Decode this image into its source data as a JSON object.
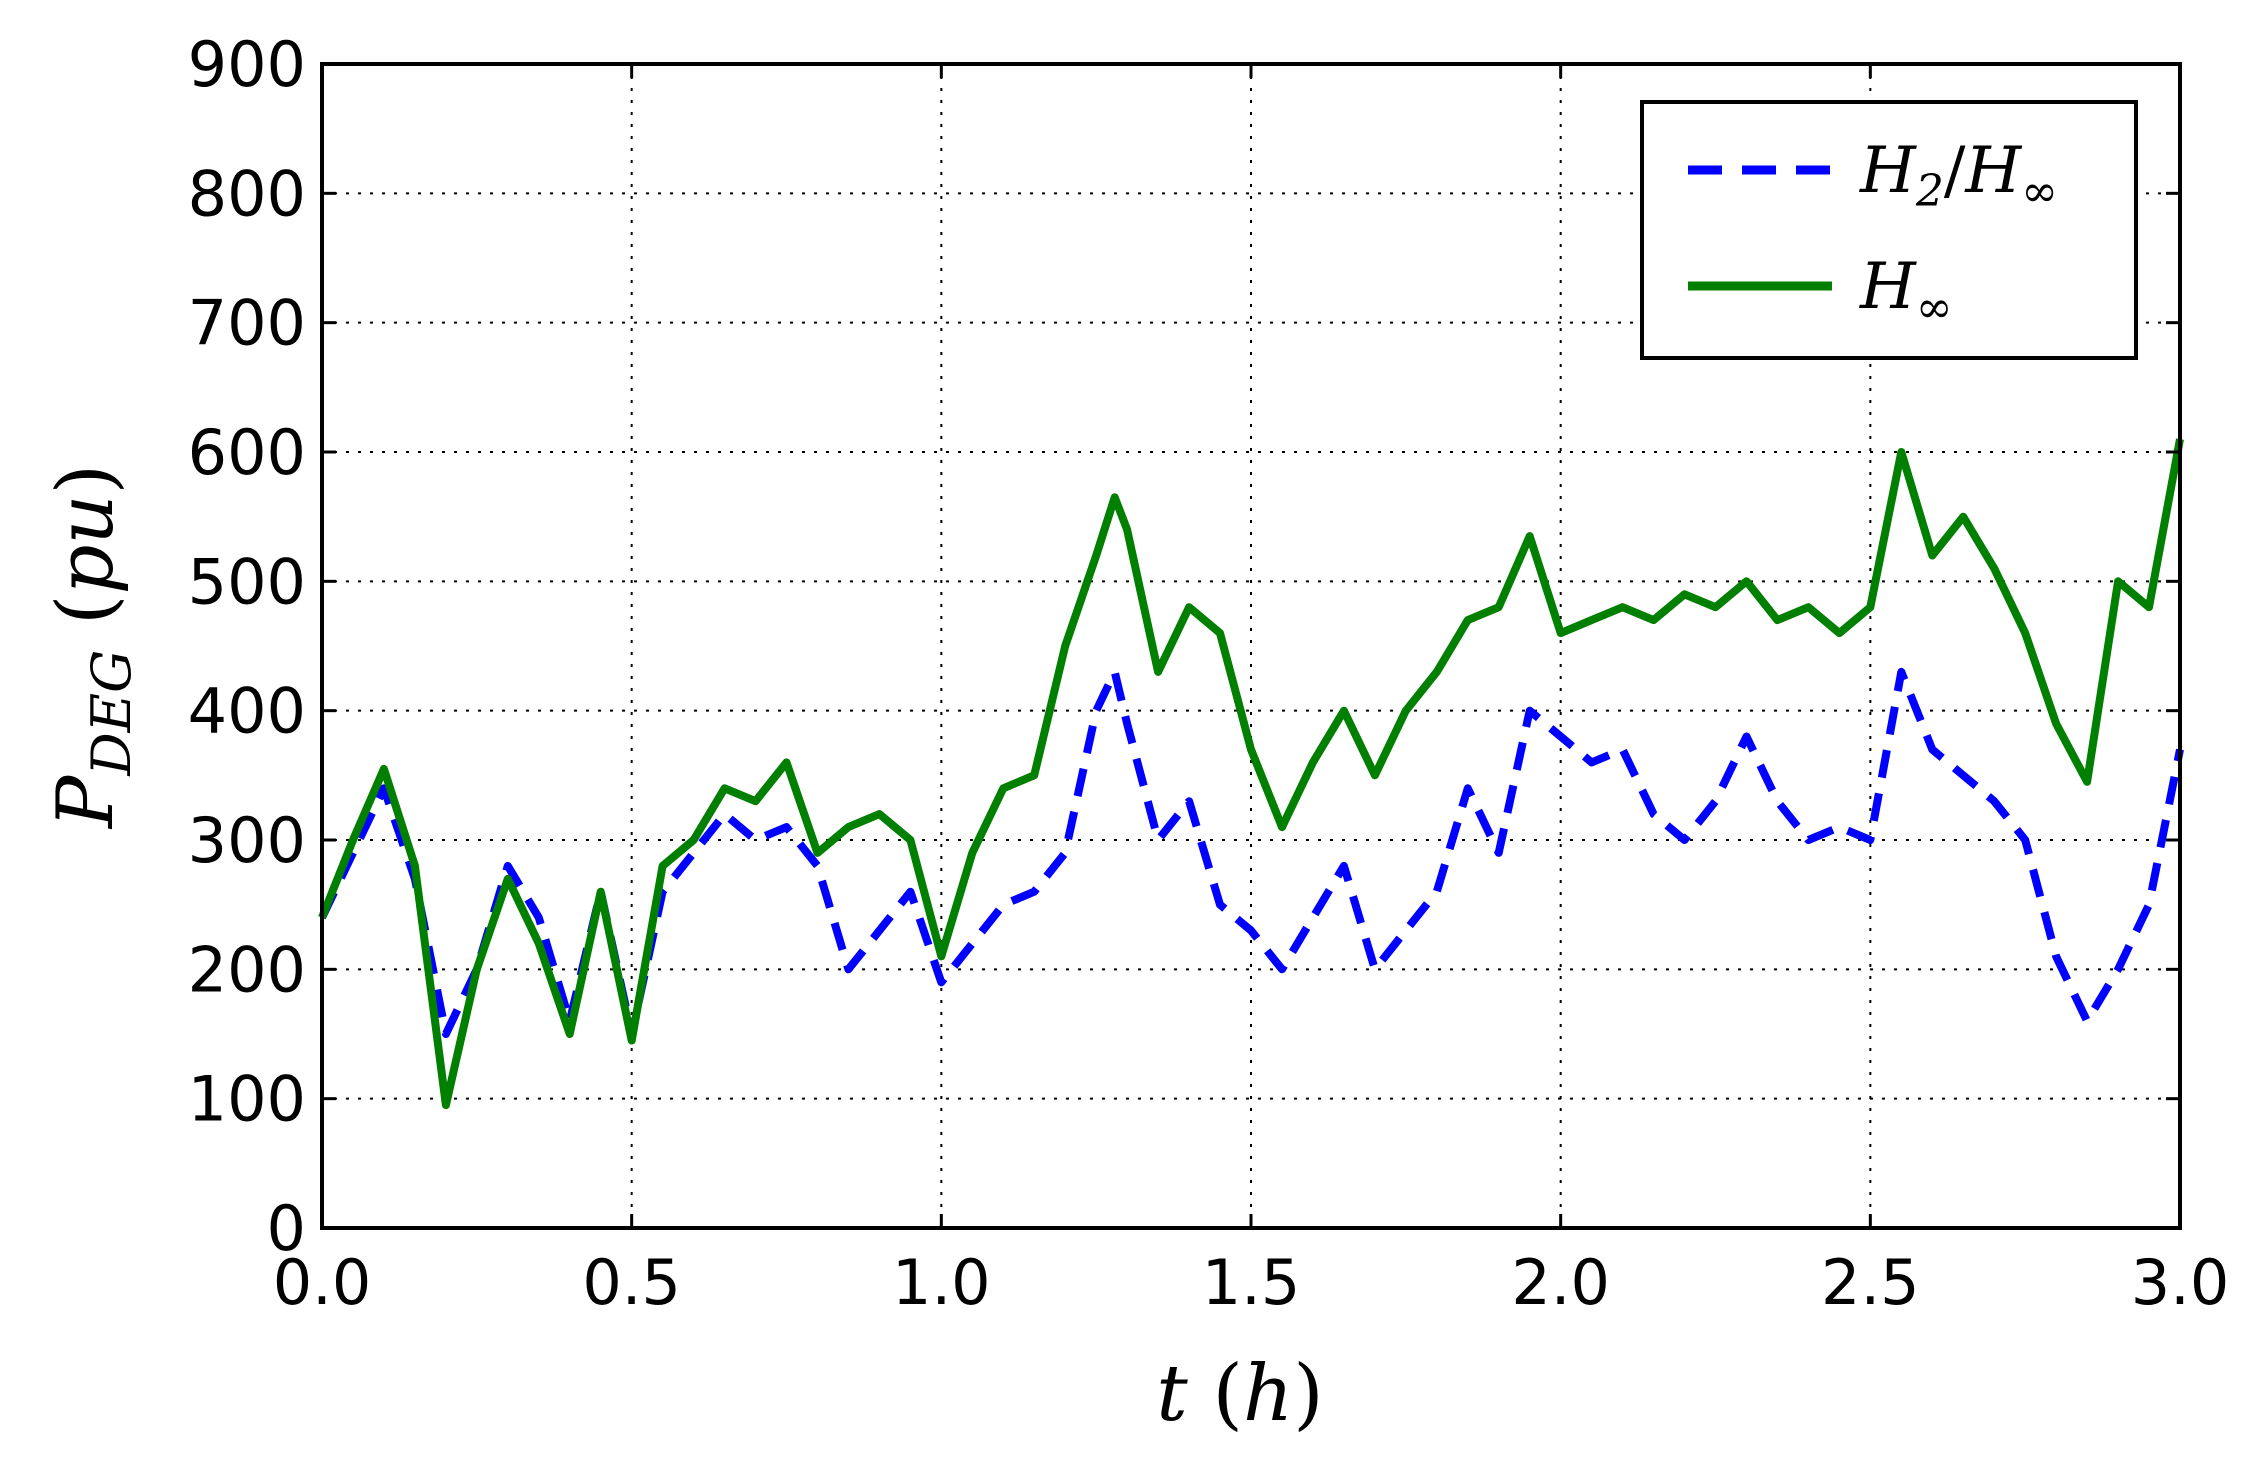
{
  "chart_data": {
    "type": "line",
    "xlabel": "t (h)",
    "ylabel": "P_DEG (pu)",
    "xlim": [
      0.0,
      3.0
    ],
    "ylim": [
      0,
      900
    ],
    "xticks": [
      "0.0",
      "0.5",
      "1.0",
      "1.5",
      "2.0",
      "2.5",
      "3.0"
    ],
    "yticks": [
      "0",
      "100",
      "200",
      "300",
      "400",
      "500",
      "600",
      "700",
      "800",
      "900"
    ],
    "grid": true,
    "legend_position": "top-right",
    "series": [
      {
        "name": "H2/H∞",
        "color": "#0000ff",
        "style": "dashed",
        "x": [
          0.0,
          0.05,
          0.1,
          0.15,
          0.2,
          0.25,
          0.3,
          0.35,
          0.4,
          0.45,
          0.5,
          0.55,
          0.6,
          0.65,
          0.7,
          0.75,
          0.8,
          0.85,
          0.9,
          0.95,
          1.0,
          1.05,
          1.1,
          1.15,
          1.2,
          1.25,
          1.28,
          1.3,
          1.35,
          1.4,
          1.45,
          1.5,
          1.55,
          1.6,
          1.65,
          1.7,
          1.75,
          1.8,
          1.85,
          1.9,
          1.95,
          2.0,
          2.05,
          2.1,
          2.15,
          2.2,
          2.25,
          2.3,
          2.35,
          2.4,
          2.45,
          2.5,
          2.55,
          2.6,
          2.65,
          2.7,
          2.75,
          2.8,
          2.85,
          2.9,
          2.95,
          3.0
        ],
        "y": [
          240,
          290,
          340,
          270,
          150,
          200,
          280,
          240,
          160,
          260,
          150,
          260,
          290,
          320,
          300,
          310,
          280,
          200,
          230,
          260,
          190,
          220,
          250,
          260,
          290,
          400,
          430,
          390,
          300,
          330,
          250,
          230,
          200,
          240,
          280,
          200,
          230,
          260,
          340,
          290,
          400,
          380,
          360,
          370,
          320,
          300,
          330,
          380,
          330,
          300,
          310,
          300,
          430,
          370,
          350,
          330,
          300,
          210,
          160,
          200,
          250,
          370
        ]
      },
      {
        "name": "H∞",
        "color": "#007f00",
        "style": "solid",
        "x": [
          0.0,
          0.05,
          0.1,
          0.15,
          0.2,
          0.25,
          0.3,
          0.35,
          0.4,
          0.45,
          0.5,
          0.55,
          0.6,
          0.65,
          0.7,
          0.75,
          0.8,
          0.85,
          0.9,
          0.95,
          1.0,
          1.05,
          1.1,
          1.15,
          1.2,
          1.25,
          1.28,
          1.3,
          1.35,
          1.4,
          1.45,
          1.5,
          1.55,
          1.6,
          1.65,
          1.7,
          1.75,
          1.8,
          1.85,
          1.9,
          1.95,
          2.0,
          2.05,
          2.1,
          2.15,
          2.2,
          2.25,
          2.3,
          2.35,
          2.4,
          2.45,
          2.5,
          2.55,
          2.6,
          2.65,
          2.7,
          2.75,
          2.8,
          2.85,
          2.9,
          2.95,
          3.0
        ],
        "y": [
          240,
          300,
          355,
          280,
          95,
          200,
          270,
          220,
          150,
          260,
          145,
          280,
          300,
          340,
          330,
          360,
          290,
          310,
          320,
          300,
          210,
          290,
          340,
          350,
          450,
          520,
          565,
          540,
          430,
          480,
          460,
          370,
          310,
          360,
          400,
          350,
          400,
          430,
          470,
          480,
          535,
          460,
          470,
          480,
          470,
          490,
          480,
          500,
          470,
          480,
          460,
          480,
          600,
          520,
          550,
          510,
          460,
          390,
          345,
          500,
          480,
          610
        ]
      }
    ]
  }
}
